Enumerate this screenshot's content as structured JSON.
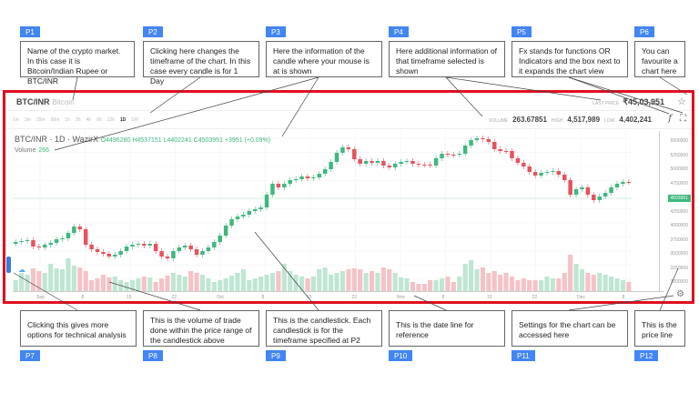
{
  "annotations_top": [
    {
      "tag": "P1",
      "text": "Name of the crypto market. In this case it is Bitcoin/Indian Rupee or BTC/INR"
    },
    {
      "tag": "P2",
      "text": "Clicking here changes the timeframe of the chart. In this case every candle is for 1 Day"
    },
    {
      "tag": "P3",
      "text": "Here the information of the candle where your mouse is at is shown"
    },
    {
      "tag": "P4",
      "text": "Here additional information of that timeframe selected is shown"
    },
    {
      "tag": "P5",
      "text": "Fx stands for functions OR Indicators and the box next to it expands the chart view"
    },
    {
      "tag": "P6",
      "text": "You can favourite a chart here"
    }
  ],
  "annotations_bottom": [
    {
      "tag": "P7",
      "text": "Clicking this gives more options for technical analysis"
    },
    {
      "tag": "P8",
      "text": "This is the volume of trade done within the price range of the candlestick above"
    },
    {
      "tag": "P9",
      "text": "This is the candlestick. Each candlestick is for the timeframe specified at P2"
    },
    {
      "tag": "P10",
      "text": "This is the date line for reference"
    },
    {
      "tag": "P11",
      "text": "Settings for the chart can be accessed here"
    },
    {
      "tag": "P12",
      "text": "This is the price line"
    }
  ],
  "chart": {
    "pair": "BTC/INR",
    "pair_sub": "Bitcoin",
    "timeframes": [
      "1m",
      "3m",
      "15m",
      "30m",
      "1h",
      "2h",
      "4h",
      "6h",
      "12h",
      "1D",
      "1W"
    ],
    "active_timeframe": "1D",
    "last_price_label": "LAST PRICE",
    "last_price": "₹45,03,951",
    "volume_label": "VOLUME",
    "volume": "263.67851",
    "high_label": "HIGH",
    "high": "4,517,989",
    "low_label": "LOW",
    "low": "4,402,241",
    "fx_label": "f",
    "legend": {
      "title": "BTC/INR · 1D · WazirX",
      "ohlc": "O4496280 H4537151 L4402241 C4503951 +3951 (+0.09%)",
      "volume_label": "Volume",
      "volume_value": "266"
    },
    "price_badge": "4503951",
    "y_ticks": [
      "5500000",
      "5250000",
      "5000000",
      "4750000",
      "4500000",
      "4250000",
      "4000000",
      "3750000",
      "3500000",
      "3250000",
      "3000000"
    ],
    "x_ticks": [
      "Sep",
      "8",
      "15",
      "22",
      "Oct",
      "8",
      "15",
      "22",
      "Nov",
      "8",
      "15",
      "22",
      "Dec",
      "8"
    ],
    "colors": {
      "up": "#3fb87f",
      "down": "#e5535d",
      "frame": "#e00f1f",
      "tag": "#4285f4"
    }
  }
}
